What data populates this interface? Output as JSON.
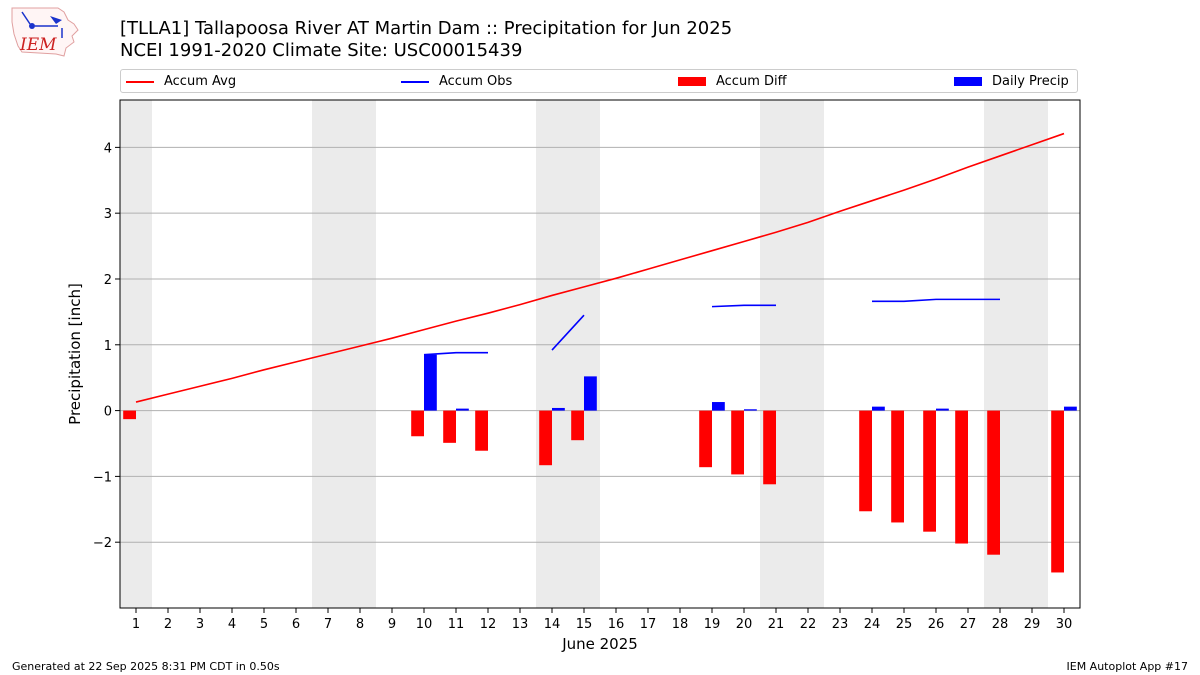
{
  "title_line1": "[TLLA1] Tallapoosa River  AT Martin Dam :: Precipitation for Jun 2025",
  "title_line2": "NCEI 1991-2020 Climate Site: USC00015439",
  "logo_text": "IEM",
  "footer_left": "Generated at 22 Sep 2025 8:31 PM CDT in 0.50s",
  "footer_right": "IEM Autoplot App #17",
  "legend": [
    {
      "label": "Accum Avg",
      "color": "#ff0000",
      "kind": "line"
    },
    {
      "label": "Accum Obs",
      "color": "#0000ff",
      "kind": "line"
    },
    {
      "label": "Accum Diff",
      "color": "#ff0000",
      "kind": "bar"
    },
    {
      "label": "Daily Precip",
      "color": "#0000ff",
      "kind": "bar"
    }
  ],
  "chart_data": {
    "type": "bar",
    "xlabel": "June 2025",
    "ylabel": "Precipitation [inch]",
    "xlim": [
      0.5,
      30.5
    ],
    "ylim": [
      -3.0,
      4.72
    ],
    "x_ticks": [
      1,
      2,
      3,
      4,
      5,
      6,
      7,
      8,
      9,
      10,
      11,
      12,
      13,
      14,
      15,
      16,
      17,
      18,
      19,
      20,
      21,
      22,
      23,
      24,
      25,
      26,
      27,
      28,
      29,
      30
    ],
    "y_ticks": [
      -2,
      -1,
      0,
      1,
      2,
      3,
      4
    ],
    "y_tick_labels": [
      "−2",
      "−1",
      "0",
      "1",
      "2",
      "3",
      "4"
    ],
    "grid": "horizontal",
    "weekend_shading": [
      [
        0.5,
        1.5
      ],
      [
        6.5,
        8.5
      ],
      [
        13.5,
        15.5
      ],
      [
        20.5,
        22.5
      ],
      [
        27.5,
        29.5
      ]
    ],
    "accum_avg": {
      "name": "Accum Avg",
      "x": [
        1,
        2,
        3,
        4,
        5,
        6,
        7,
        8,
        9,
        10,
        11,
        12,
        13,
        14,
        15,
        16,
        17,
        18,
        19,
        20,
        21,
        22,
        23,
        24,
        25,
        26,
        27,
        28,
        29,
        30
      ],
      "values": [
        0.13,
        0.25,
        0.37,
        0.49,
        0.62,
        0.74,
        0.86,
        0.98,
        1.1,
        1.23,
        1.36,
        1.48,
        1.61,
        1.75,
        1.88,
        2.01,
        2.15,
        2.29,
        2.43,
        2.57,
        2.71,
        2.86,
        3.03,
        3.19,
        3.35,
        3.52,
        3.7,
        3.87,
        4.04,
        4.21
      ]
    },
    "accum_obs": {
      "name": "Accum Obs",
      "segments": [
        {
          "x": [
            10,
            11,
            12
          ],
          "values": [
            0.85,
            0.88,
            0.88
          ]
        },
        {
          "x": [
            14,
            15
          ],
          "values": [
            0.92,
            1.45
          ]
        },
        {
          "x": [
            19,
            20,
            21
          ],
          "values": [
            1.58,
            1.6,
            1.6
          ]
        },
        {
          "x": [
            24,
            25,
            26,
            27,
            28
          ],
          "values": [
            1.66,
            1.66,
            1.69,
            1.69,
            1.69
          ]
        }
      ]
    },
    "accum_diff": {
      "name": "Accum Diff",
      "x": [
        1,
        10,
        11,
        12,
        14,
        15,
        19,
        20,
        21,
        24,
        25,
        26,
        27,
        28,
        30
      ],
      "values": [
        -0.13,
        -0.39,
        -0.49,
        -0.61,
        -0.83,
        -0.45,
        -0.86,
        -0.97,
        -1.12,
        -1.53,
        -1.7,
        -1.84,
        -2.02,
        -2.19,
        -2.46
      ]
    },
    "daily_precip": {
      "name": "Daily Precip",
      "x": [
        10,
        11,
        14,
        15,
        19,
        20,
        24,
        26,
        30
      ],
      "values": [
        0.85,
        0.03,
        0.04,
        0.52,
        0.13,
        0.02,
        0.06,
        0.03,
        0.06
      ]
    }
  }
}
